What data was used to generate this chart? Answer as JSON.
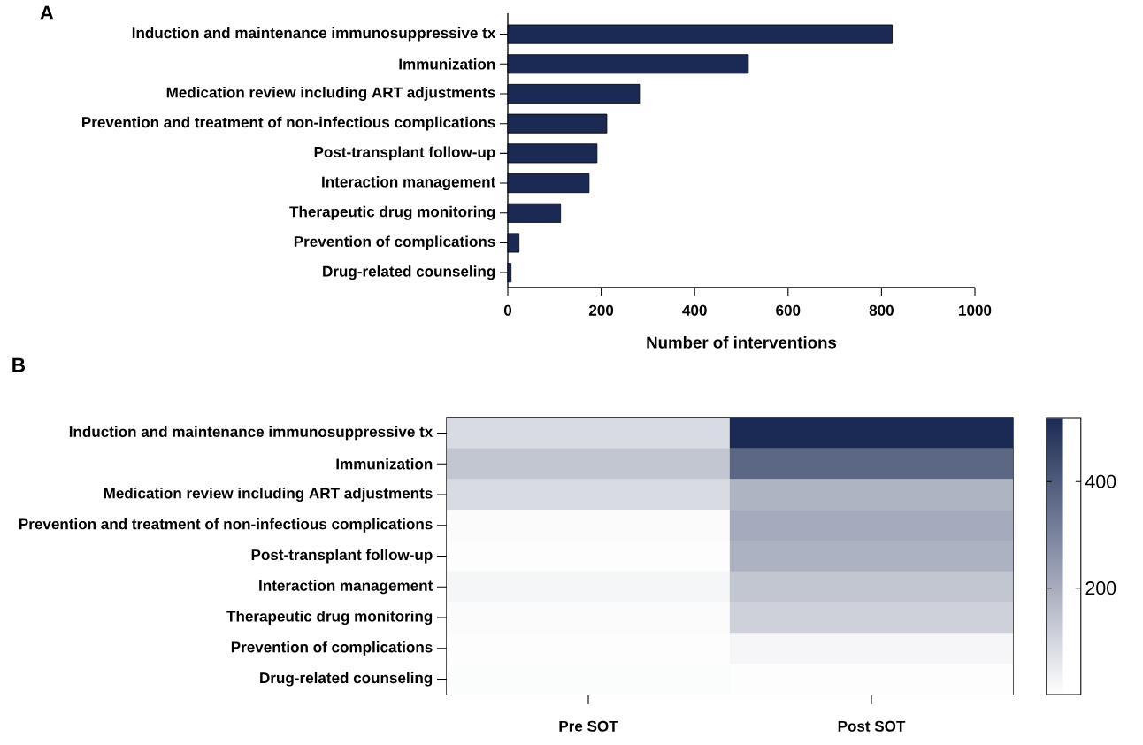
{
  "chart_data": [
    {
      "type": "bar",
      "orientation": "horizontal",
      "title": "A",
      "categories": [
        "Induction and maintenance immunosuppressive tx",
        "Immunization",
        "Medication review including ART adjustments",
        "Prevention and treatment of non-infectious complications",
        "Post-transplant follow-up",
        "Interaction management",
        "Therapeutic drug monitoring",
        "Prevention of complications",
        "Drug-related counseling"
      ],
      "values": [
        823,
        515,
        282,
        212,
        191,
        174,
        113,
        24,
        7
      ],
      "color": "#1b2a55",
      "xlabel": "Number of interventions",
      "xlim": [
        0,
        1000
      ],
      "xticks": [
        0,
        200,
        400,
        600,
        800,
        1000
      ]
    },
    {
      "type": "heatmap",
      "title": "B",
      "categories": [
        "Pre SOT",
        "Post SOT"
      ],
      "y_categories": [
        "Induction and maintenance immunosuppressive tx",
        "Immunization",
        "Medication review including ART adjustments",
        "Prevention and treatment of non-infectious complications",
        "Post-transplant follow-up",
        "Interaction management",
        "Therapeutic drug monitoring",
        "Prevention of complications",
        "Drug-related counseling"
      ],
      "cells": [
        [
          88,
          520
        ],
        [
          139,
          369
        ],
        [
          88,
          181
        ],
        [
          10,
          204
        ],
        [
          5,
          186
        ],
        [
          23,
          139
        ],
        [
          10,
          111
        ],
        [
          5,
          21
        ],
        [
          8,
          5
        ]
      ],
      "clim": [
        0,
        520
      ],
      "cticks": [
        200,
        400
      ]
    }
  ]
}
